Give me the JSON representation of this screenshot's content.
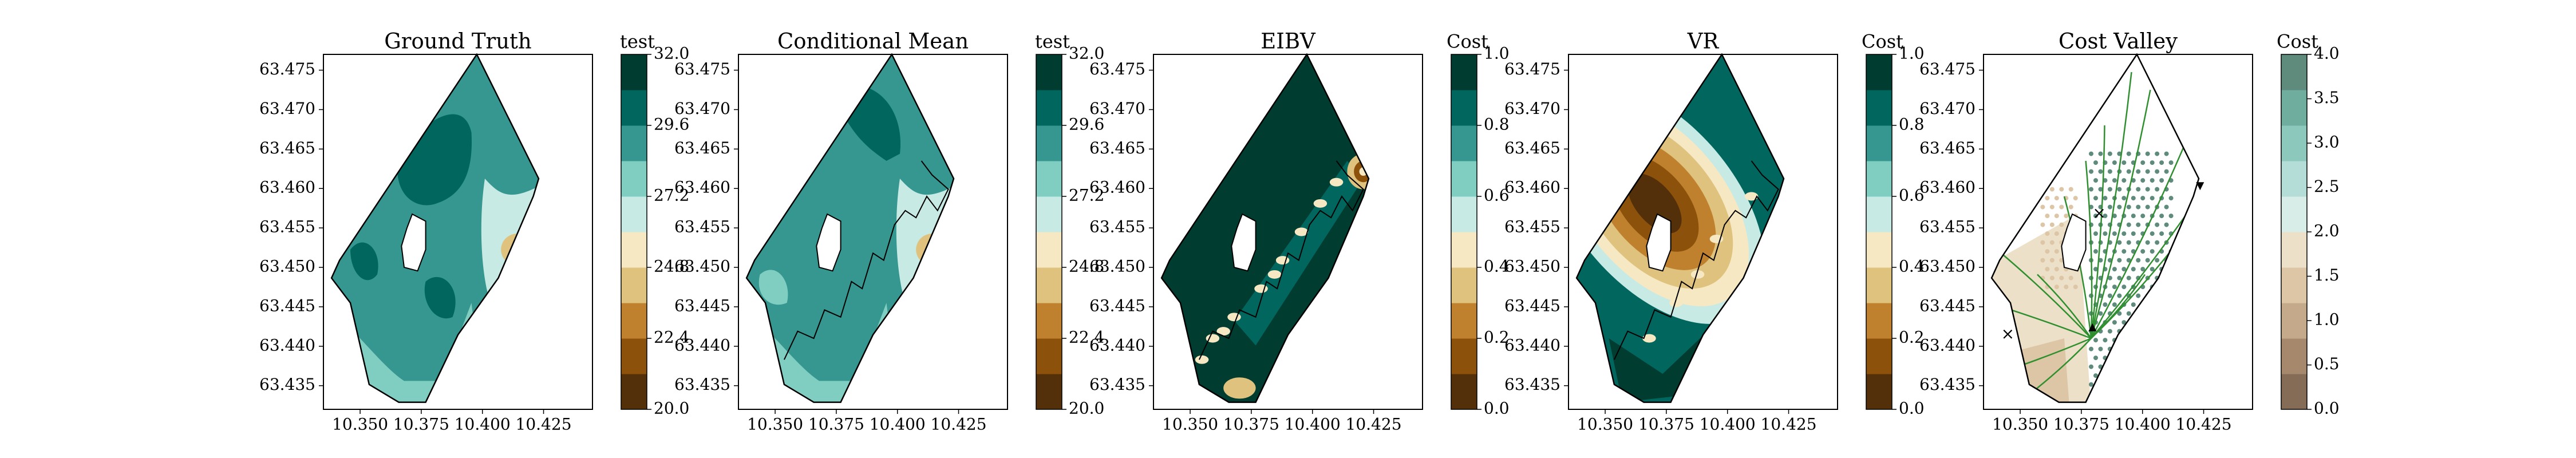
{
  "figure": {
    "background": "#ffffff",
    "x_axis_label": "",
    "y_axis_label": ""
  },
  "chart_data": [
    {
      "type": "heatmap",
      "title": "Ground Truth",
      "xlabel": "",
      "ylabel": "",
      "x_ticks": [
        "10.350",
        "10.375",
        "10.400",
        "10.425"
      ],
      "y_ticks": [
        "63.475",
        "63.470",
        "63.465",
        "63.460",
        "63.455",
        "63.450",
        "63.445",
        "63.440",
        "63.435"
      ],
      "xlim": [
        10.335,
        10.445
      ],
      "ylim": [
        63.432,
        63.477
      ],
      "grid": false,
      "colorbar": {
        "title": "test",
        "ticks": [
          "32.0",
          "29.6",
          "27.2",
          "24.8",
          "22.4",
          "20.0"
        ],
        "range": [
          20.0,
          32.0
        ]
      }
    },
    {
      "type": "heatmap",
      "title": "Conditional Mean",
      "xlabel": "",
      "ylabel": "",
      "x_ticks": [
        "10.350",
        "10.375",
        "10.400",
        "10.425"
      ],
      "y_ticks": [
        "63.475",
        "63.470",
        "63.465",
        "63.460",
        "63.455",
        "63.450",
        "63.445",
        "63.440",
        "63.435"
      ],
      "xlim": [
        10.335,
        10.445
      ],
      "ylim": [
        63.432,
        63.477
      ],
      "grid": false,
      "overlay": "sampling path (black lines)",
      "colorbar": {
        "title": "test",
        "ticks": [
          "32.0",
          "29.6",
          "27.2",
          "24.8",
          "22.4",
          "20.0"
        ],
        "range": [
          20.0,
          32.0
        ]
      }
    },
    {
      "type": "heatmap",
      "title": "EIBV",
      "xlabel": "",
      "ylabel": "",
      "x_ticks": [
        "10.350",
        "10.375",
        "10.400",
        "10.425"
      ],
      "y_ticks": [
        "63.475",
        "63.470",
        "63.465",
        "63.460",
        "63.455",
        "63.450",
        "63.445",
        "63.440",
        "63.435"
      ],
      "xlim": [
        10.335,
        10.445
      ],
      "ylim": [
        63.432,
        63.477
      ],
      "grid": false,
      "colorbar": {
        "title": "Cost",
        "ticks": [
          "1.0",
          "0.8",
          "0.6",
          "0.4",
          "0.2",
          "0.0"
        ],
        "range": [
          0.0,
          1.0
        ]
      }
    },
    {
      "type": "heatmap",
      "title": "VR",
      "xlabel": "",
      "ylabel": "",
      "x_ticks": [
        "10.350",
        "10.375",
        "10.400",
        "10.425"
      ],
      "y_ticks": [
        "63.475",
        "63.470",
        "63.465",
        "63.460",
        "63.455",
        "63.450",
        "63.445",
        "63.440",
        "63.435"
      ],
      "xlim": [
        10.335,
        10.445
      ],
      "ylim": [
        63.432,
        63.477
      ],
      "grid": false,
      "colorbar": {
        "title": "Cost",
        "ticks": [
          "1.0",
          "0.8",
          "0.6",
          "0.4",
          "0.2",
          "0.0"
        ],
        "range": [
          0.0,
          1.0
        ]
      }
    },
    {
      "type": "scatter",
      "title": "Cost Valley",
      "xlabel": "",
      "ylabel": "",
      "x_ticks": [
        "10.350",
        "10.375",
        "10.400",
        "10.425"
      ],
      "y_ticks": [
        "63.475",
        "63.470",
        "63.465",
        "63.460",
        "63.455",
        "63.450",
        "63.445",
        "63.440",
        "63.435"
      ],
      "xlim": [
        10.335,
        10.445
      ],
      "ylim": [
        63.432,
        63.477
      ],
      "grid": false,
      "overlay": "tree of candidate paths (green), visited nodes (dots), markers",
      "colorbar": {
        "title": "Cost",
        "ticks": [
          "4.0",
          "3.5",
          "3.0",
          "2.5",
          "2.0",
          "1.5",
          "1.0",
          "0.5",
          "0.0"
        ],
        "range": [
          0.0,
          4.0
        ]
      }
    }
  ],
  "colormap": {
    "temperature_levels": [
      "#54300a",
      "#8c510a",
      "#bf812d",
      "#dfc27d",
      "#f6e8c3",
      "#c7eae5",
      "#80cdc1",
      "#35978f",
      "#01665e",
      "#003c30"
    ],
    "cost_levels": [
      "#846c57",
      "#a6896c",
      "#c4a98a",
      "#dcc6a6",
      "#ece0c8",
      "#d8ece8",
      "#b3ddd6",
      "#8dc8bd",
      "#6fae9f",
      "#5f8b7d"
    ]
  }
}
